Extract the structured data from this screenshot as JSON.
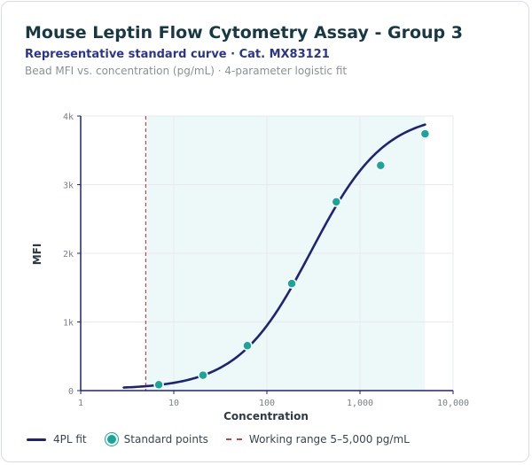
{
  "header": {
    "title": "Mouse Leptin Flow Cytometry Assay - Group 3",
    "subtitle": "Representative standard curve · Cat. MX83121",
    "caption": "Bead MFI vs. concentration (pg/mL) · 4-parameter logistic fit"
  },
  "chart_data": {
    "type": "scatter",
    "xlabel": "Concentration",
    "ylabel": "MFI",
    "xscale": "log",
    "xlim": [
      1,
      10000
    ],
    "ylim": [
      0,
      4000
    ],
    "x_ticks": [
      1,
      10,
      100,
      1000,
      10000
    ],
    "x_tick_labels": [
      "1",
      "10",
      "100",
      "1,000",
      "10,000"
    ],
    "y_ticks": [
      0,
      1000,
      2000,
      3000,
      4000
    ],
    "y_tick_labels": [
      "0",
      "1k",
      "2k",
      "3k",
      "4k"
    ],
    "grid": true,
    "legend_position": "bottom-left",
    "series": [
      {
        "name": "Standard points",
        "kind": "points",
        "color": "#18a69a",
        "x": [
          6.9,
          20.6,
          61.7,
          185,
          556,
          1667,
          5000
        ],
        "y": [
          85,
          225,
          655,
          1560,
          2750,
          3280,
          3740
        ]
      },
      {
        "name": "4PL fit",
        "kind": "curve",
        "color": "#1f2374",
        "x_range": [
          2.9,
          5000
        ],
        "params": {
          "a": 20,
          "b": 1.1,
          "c": 300,
          "d": 4050
        }
      }
    ],
    "working_range": {
      "label": "Working range 5–5,000 pg/mL",
      "min": 5,
      "max": 5000,
      "shade_color": "#edf8f8",
      "line_color": "#c8404a"
    }
  }
}
